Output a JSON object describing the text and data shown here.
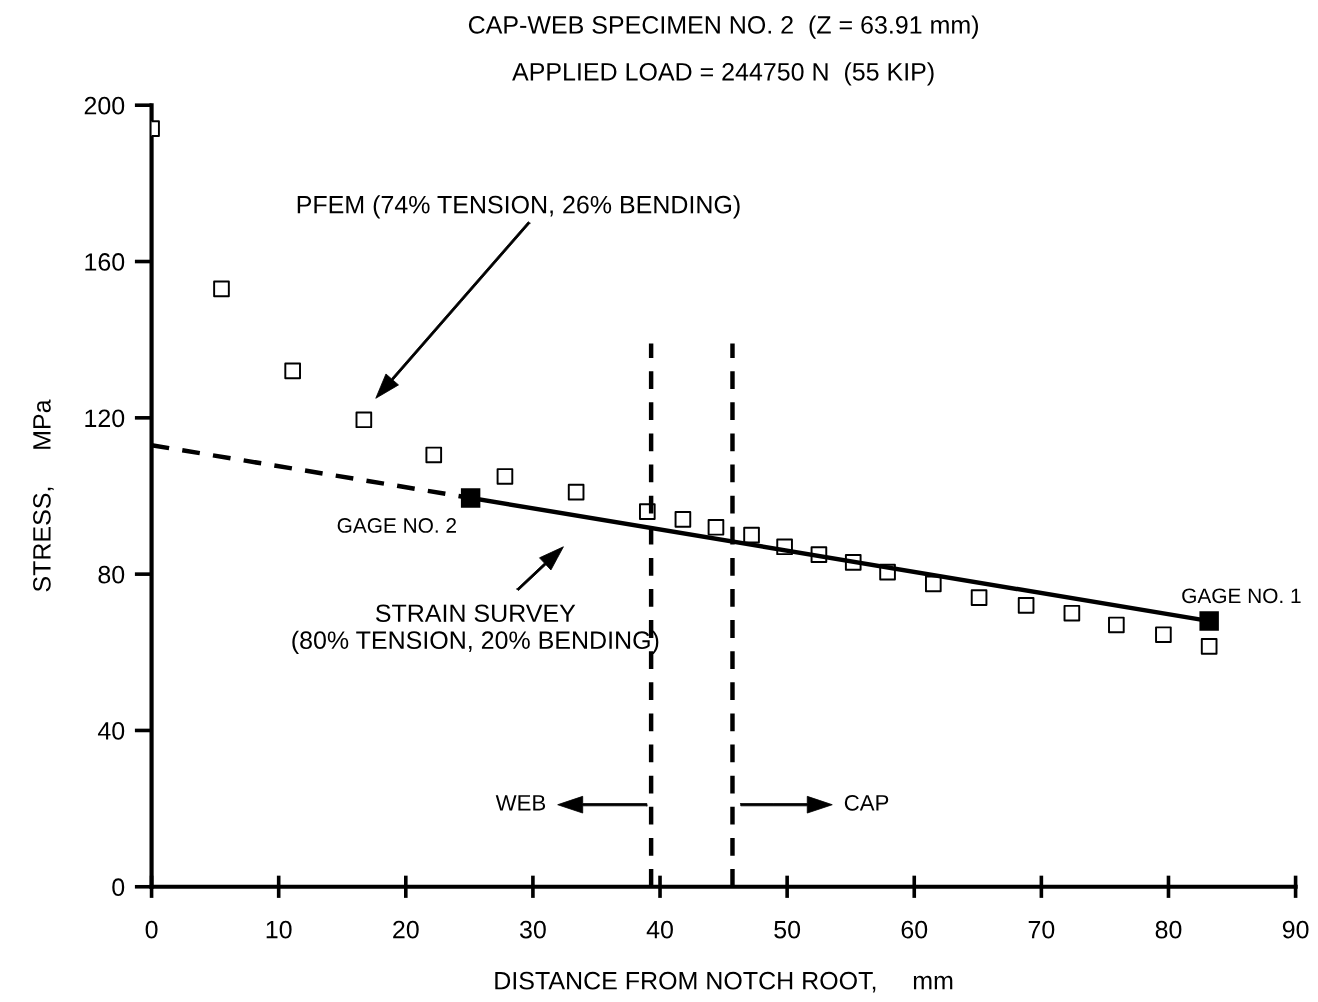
{
  "chart_data": {
    "type": "scatter",
    "title": "CAP-WEB SPECIMEN NO. 2  (Z = 63.91 mm)",
    "subtitle": "APPLIED LOAD = 244750 N  (55 KIP)",
    "xlabel": "DISTANCE FROM NOTCH ROOT,     mm",
    "ylabel": "STRESS,     MPa",
    "xlim": [
      0,
      90
    ],
    "ylim": [
      0,
      200
    ],
    "xticks": [
      0,
      10,
      20,
      30,
      40,
      50,
      60,
      70,
      80,
      90
    ],
    "yticks": [
      0,
      40,
      80,
      120,
      160,
      200
    ],
    "grid": false,
    "legend": false,
    "series": [
      {
        "marker": "square",
        "color": "#000000",
        "x": [
          0,
          5.5,
          11.1,
          16.7,
          22.2,
          27.8,
          33.4,
          39.0,
          41.8,
          44.4,
          47.2,
          49.8,
          52.5,
          55.2,
          57.9,
          61.5,
          65.1,
          68.8,
          72.4,
          75.9,
          79.6,
          83.2
        ],
        "values": [
          194,
          153,
          132,
          119.5,
          110.5,
          105,
          101,
          96,
          94,
          92,
          90,
          87,
          85,
          83,
          80.5,
          77.5,
          74,
          72,
          70,
          67,
          64.5,
          61.5
        ]
      },
      {
        "type": "line",
        "line_style": "dashed",
        "color": "#000000",
        "x": [
          0,
          25.1
        ],
        "values": [
          113,
          99.5
        ]
      },
      {
        "type": "line",
        "line_style": "solid",
        "marker": "square",
        "color": "#000000",
        "x": [
          25.1,
          83.2
        ],
        "values": [
          99.5,
          68
        ]
      },
      {
        "type": "line",
        "line_style": "dashed",
        "marker": "none",
        "color": "#000000",
        "x": [
          39.3,
          39.3
        ],
        "values": [
          0,
          139
        ]
      },
      {
        "type": "line",
        "line_style": "dashed",
        "marker": "none",
        "color": "#000000",
        "x": [
          45.7,
          45.7
        ],
        "values": [
          0,
          139
        ]
      }
    ],
    "annotations": [
      "PFEM (74% TENSION, 26% BENDING)",
      "STRAIN SURVEY\n(80% TENSION, 20% BENDING)",
      "GAGE NO. 2",
      "GAGE NO. 1",
      "WEB",
      "CAP"
    ]
  }
}
